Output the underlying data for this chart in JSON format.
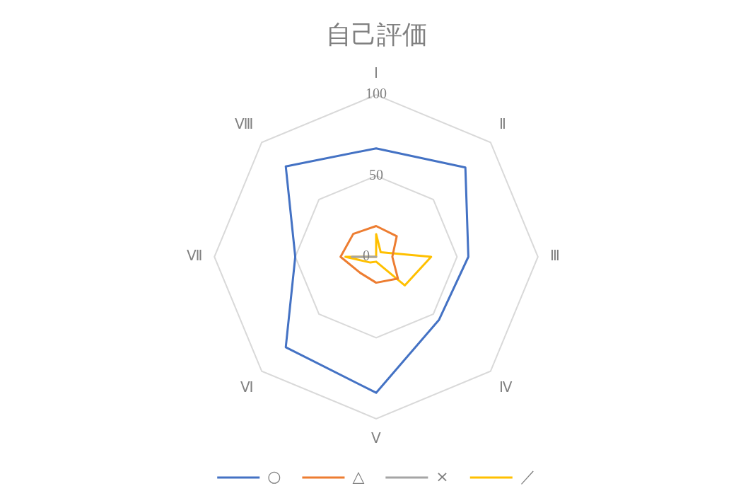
{
  "chart_data": {
    "type": "radar",
    "title": "自己評価",
    "categories": [
      "Ⅰ",
      "Ⅱ",
      "Ⅲ",
      "Ⅳ",
      "Ⅴ",
      "Ⅵ",
      "Ⅶ",
      "Ⅷ"
    ],
    "series": [
      {
        "name": "○",
        "color": "#4472c4",
        "values": [
          67,
          78,
          57,
          55,
          84,
          79,
          50,
          79
        ]
      },
      {
        "name": "△",
        "color": "#ed7d31",
        "values": [
          19,
          18,
          10,
          19,
          16,
          14,
          22,
          20
        ]
      },
      {
        "name": "×",
        "color": "#a5a5a5",
        "values": [
          0,
          0,
          0,
          0,
          0,
          0,
          15,
          0
        ]
      },
      {
        "name": "／",
        "color": "#ffc000",
        "values": [
          14,
          4,
          34,
          25,
          3,
          5,
          19,
          0
        ]
      }
    ],
    "ylim": [
      0,
      100
    ],
    "yticks": [
      0,
      50,
      100
    ],
    "grid": true,
    "legend": "bottom",
    "marker": "none"
  }
}
